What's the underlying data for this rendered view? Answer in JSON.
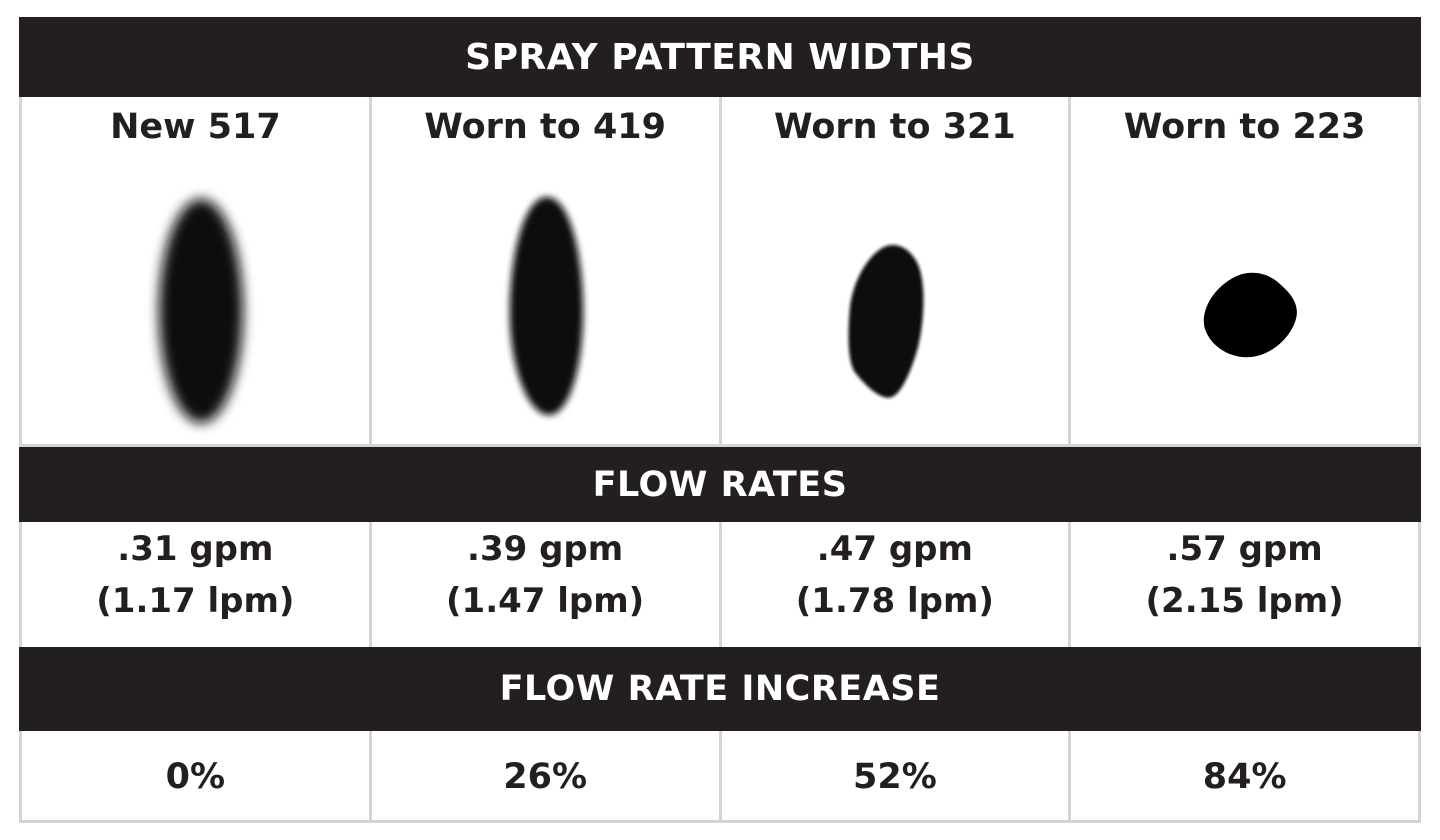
{
  "headers": {
    "spray": "SPRAY PATTERN WIDTHS",
    "flow": "FLOW RATES",
    "increase": "FLOW RATE INCREASE"
  },
  "columns": [
    {
      "title": "New 517",
      "pattern": "wide-soft-ellipse",
      "flow_gpm": ".31 gpm",
      "flow_lpm": "(1.17 lpm)",
      "increase": "0%"
    },
    {
      "title": "Worn to 419",
      "pattern": "narrow-soft-ellipse",
      "flow_gpm": ".39 gpm",
      "flow_lpm": "(1.47 lpm)",
      "increase": "26%"
    },
    {
      "title": "Worn to 321",
      "pattern": "irregular-oval",
      "flow_gpm": ".47 gpm",
      "flow_lpm": "(1.78 lpm)",
      "increase": "52%"
    },
    {
      "title": "Worn to 223",
      "pattern": "round-blob",
      "flow_gpm": ".57 gpm",
      "flow_lpm": "(2.15 lpm)",
      "increase": "84%"
    }
  ],
  "colors": {
    "band": "#231f20",
    "band_text": "#ffffff",
    "grid": "#d4d4d4",
    "text": "#231f20",
    "spray": "#0a0a0a"
  }
}
